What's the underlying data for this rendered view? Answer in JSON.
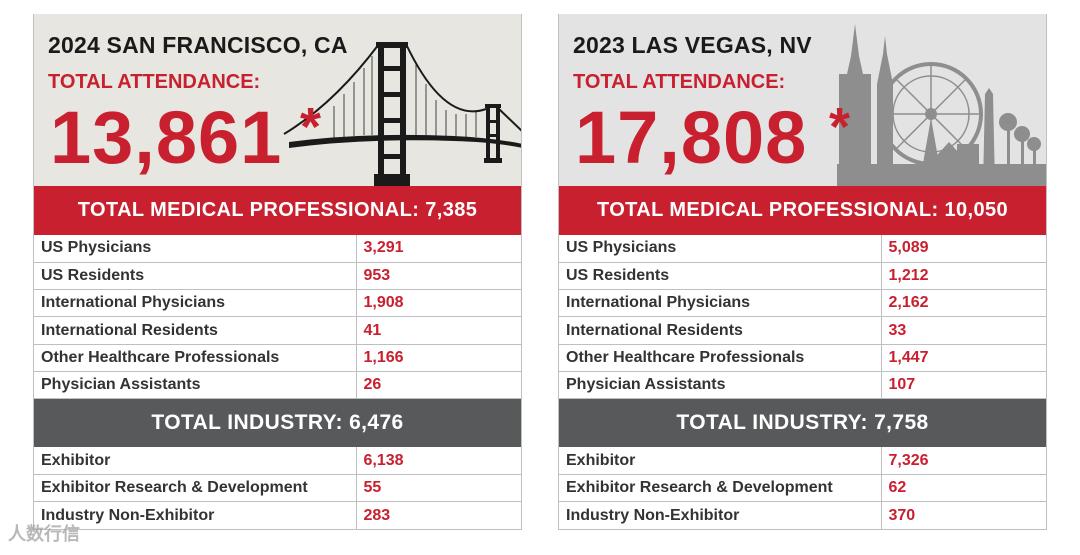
{
  "panels": [
    {
      "city": "2024 SAN FRANCISCO, CA",
      "attendance_label": "TOTAL ATTENDANCE:",
      "attendance_value": "13,861",
      "asterisk": "*",
      "medical_header": "TOTAL MEDICAL PROFESSIONAL: 7,385",
      "medical_rows": [
        {
          "label": "US Physicians",
          "value": "3,291"
        },
        {
          "label": "US Residents",
          "value": "953"
        },
        {
          "label": "International Physicians",
          "value": "1,908"
        },
        {
          "label": "International Residents",
          "value": "41"
        },
        {
          "label": "Other Healthcare Professionals",
          "value": "1,166"
        },
        {
          "label": "Physician Assistants",
          "value": "26"
        }
      ],
      "industry_header": "TOTAL INDUSTRY: 6,476",
      "industry_rows": [
        {
          "label": "Exhibitor",
          "value": "6,138"
        },
        {
          "label": "Exhibitor Research & Development",
          "value": "55"
        },
        {
          "label": "Industry Non-Exhibitor",
          "value": "283"
        }
      ]
    },
    {
      "city": "2023 LAS VEGAS, NV",
      "attendance_label": "TOTAL ATTENDANCE:",
      "attendance_value": "17,808",
      "asterisk": "*",
      "medical_header": "TOTAL MEDICAL PROFESSIONAL: 10,050",
      "medical_rows": [
        {
          "label": "US Physicians",
          "value": "5,089"
        },
        {
          "label": "US Residents",
          "value": "1,212"
        },
        {
          "label": "International Physicians",
          "value": "2,162"
        },
        {
          "label": "International Residents",
          "value": "33"
        },
        {
          "label": "Other Healthcare Professionals",
          "value": "1,447"
        },
        {
          "label": "Physician Assistants",
          "value": "107"
        }
      ],
      "industry_header": "TOTAL INDUSTRY: 7,758",
      "industry_rows": [
        {
          "label": "Exhibitor",
          "value": "7,326"
        },
        {
          "label": "Exhibitor Research & Development",
          "value": "62"
        },
        {
          "label": "Industry Non-Exhibitor",
          "value": "370"
        }
      ]
    }
  ],
  "watermark": "人数行信",
  "colors": {
    "accent": "#c8202f",
    "dark_bar": "#58595b"
  }
}
